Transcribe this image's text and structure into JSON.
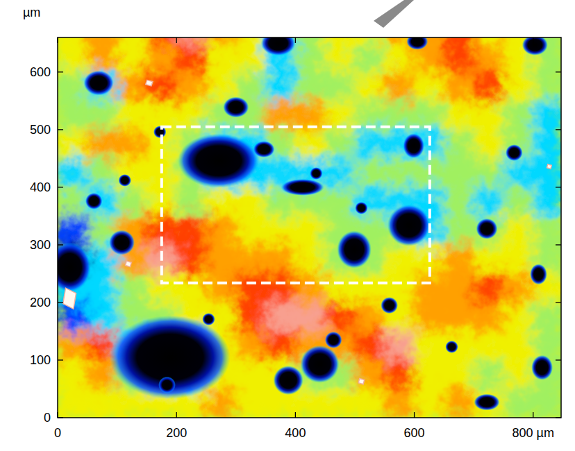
{
  "chart_data": {
    "type": "heatmap",
    "y_label": "µm",
    "xlim": [
      0,
      847
    ],
    "ylim": [
      0,
      660
    ],
    "xticks": [
      0,
      200,
      400,
      600,
      {
        "value": 800,
        "label": "800 µm"
      }
    ],
    "yticks": [
      0,
      100,
      200,
      300,
      400,
      500,
      600
    ],
    "zlim": [
      0,
      5
    ],
    "x": [
      25,
      75,
      125,
      175,
      225,
      275,
      325,
      375,
      425,
      475,
      525,
      575,
      625,
      675,
      725,
      775,
      825
    ],
    "y": [
      675,
      625,
      575,
      525,
      475,
      425,
      375,
      325,
      275,
      225,
      175,
      125,
      75,
      25
    ],
    "values": [
      [
        3,
        3.5,
        3,
        4,
        4.5,
        3.5,
        3,
        2,
        2.5,
        3,
        3,
        3.5,
        3.5,
        4,
        3,
        3,
        2.5
      ],
      [
        3,
        3.5,
        3,
        3.5,
        4,
        3,
        3,
        2,
        2.5,
        3,
        2.5,
        3,
        3.5,
        4,
        3.5,
        3,
        2.5
      ],
      [
        2.5,
        2,
        3.5,
        4,
        3.5,
        3,
        2.5,
        2,
        2.5,
        2.5,
        3,
        3.5,
        3,
        3.5,
        4,
        3,
        2.5
      ],
      [
        2.5,
        2.5,
        3,
        3,
        3,
        2.5,
        2.5,
        3.5,
        3.5,
        3,
        2.5,
        2.5,
        2.5,
        3,
        3,
        2.5,
        2
      ],
      [
        3,
        3.5,
        3.5,
        3,
        2.5,
        2,
        2,
        2.5,
        3,
        2.5,
        2,
        2,
        2,
        2.5,
        3,
        2.5,
        2
      ],
      [
        2,
        2.5,
        3,
        3,
        2.5,
        2,
        2,
        2,
        2,
        2,
        2.5,
        2.5,
        2.5,
        2.5,
        2.5,
        2,
        2
      ],
      [
        2.5,
        2,
        2.5,
        3,
        2.5,
        3,
        3,
        2.5,
        2.5,
        2.5,
        2,
        2,
        2,
        2.5,
        2,
        2.5,
        2
      ],
      [
        1.5,
        2.5,
        3.5,
        4,
        4,
        3.5,
        3,
        3,
        3,
        2.5,
        2.5,
        2.5,
        2,
        2.5,
        2.5,
        3,
        2.5
      ],
      [
        1,
        2,
        3.5,
        4.5,
        4,
        3.5,
        3.5,
        3.5,
        3,
        2.5,
        2.5,
        3,
        3,
        3.5,
        3,
        3,
        2.5
      ],
      [
        2,
        2,
        2.5,
        3,
        3,
        3.5,
        4,
        4,
        3.5,
        3,
        3,
        3,
        3.5,
        3.5,
        4,
        3.5,
        3
      ],
      [
        1.5,
        2,
        2.5,
        2.5,
        3,
        3,
        4,
        4.5,
        4.5,
        4,
        3.5,
        3,
        3.5,
        3.5,
        3.5,
        3,
        2.5
      ],
      [
        3.5,
        4,
        2,
        1,
        1.5,
        3,
        3.5,
        4,
        3.5,
        3.5,
        4,
        4.5,
        3,
        3,
        3,
        3,
        2.5
      ],
      [
        3,
        3.5,
        2.5,
        1.5,
        2,
        3,
        3,
        3,
        2.5,
        2.5,
        3.5,
        4,
        3,
        3,
        2.5,
        3,
        2.5
      ],
      [
        3,
        3,
        3,
        3,
        3,
        3.5,
        3,
        3,
        3,
        3,
        3,
        3.5,
        3,
        3.5,
        3,
        2.5,
        2.5
      ]
    ],
    "pits": {
      "x": [
        189,
        271,
        499,
        591,
        20,
        441,
        388,
        69,
        300,
        108,
        412,
        599,
        722,
        815,
        722,
        347,
        371,
        464,
        809,
        184,
        803,
        605,
        61,
        558,
        768,
        172,
        113,
        663,
        254,
        511,
        435
      ],
      "y": [
        105,
        446,
        292,
        334,
        261,
        93,
        65,
        581,
        539,
        304,
        400,
        472,
        328,
        87,
        27,
        466,
        650,
        135,
        249,
        57,
        647,
        653,
        376,
        195,
        460,
        496,
        412,
        123,
        171,
        364,
        424
      ],
      "width": [
        140,
        95,
        40,
        50,
        50,
        45,
        35,
        35,
        30,
        30,
        50,
        25,
        25,
        25,
        30,
        25,
        40,
        20,
        20,
        20,
        30,
        25,
        20,
        20,
        20,
        15,
        15,
        15,
        15,
        15,
        15
      ],
      "height": [
        100,
        65,
        45,
        50,
        60,
        45,
        35,
        30,
        25,
        30,
        20,
        30,
        25,
        30,
        20,
        20,
        30,
        20,
        25,
        20,
        25,
        20,
        20,
        20,
        20,
        15,
        15,
        15,
        15,
        15,
        15
      ]
    },
    "particles": {
      "x": [
        20,
        119,
        511,
        154,
        827
      ],
      "y": [
        207,
        267,
        63,
        581,
        436
      ],
      "width": [
        22,
        10,
        10,
        12,
        8
      ],
      "height": [
        36,
        10,
        10,
        10,
        8
      ]
    },
    "region": {
      "x": [
        175,
        626
      ],
      "y": [
        234,
        505
      ]
    }
  }
}
